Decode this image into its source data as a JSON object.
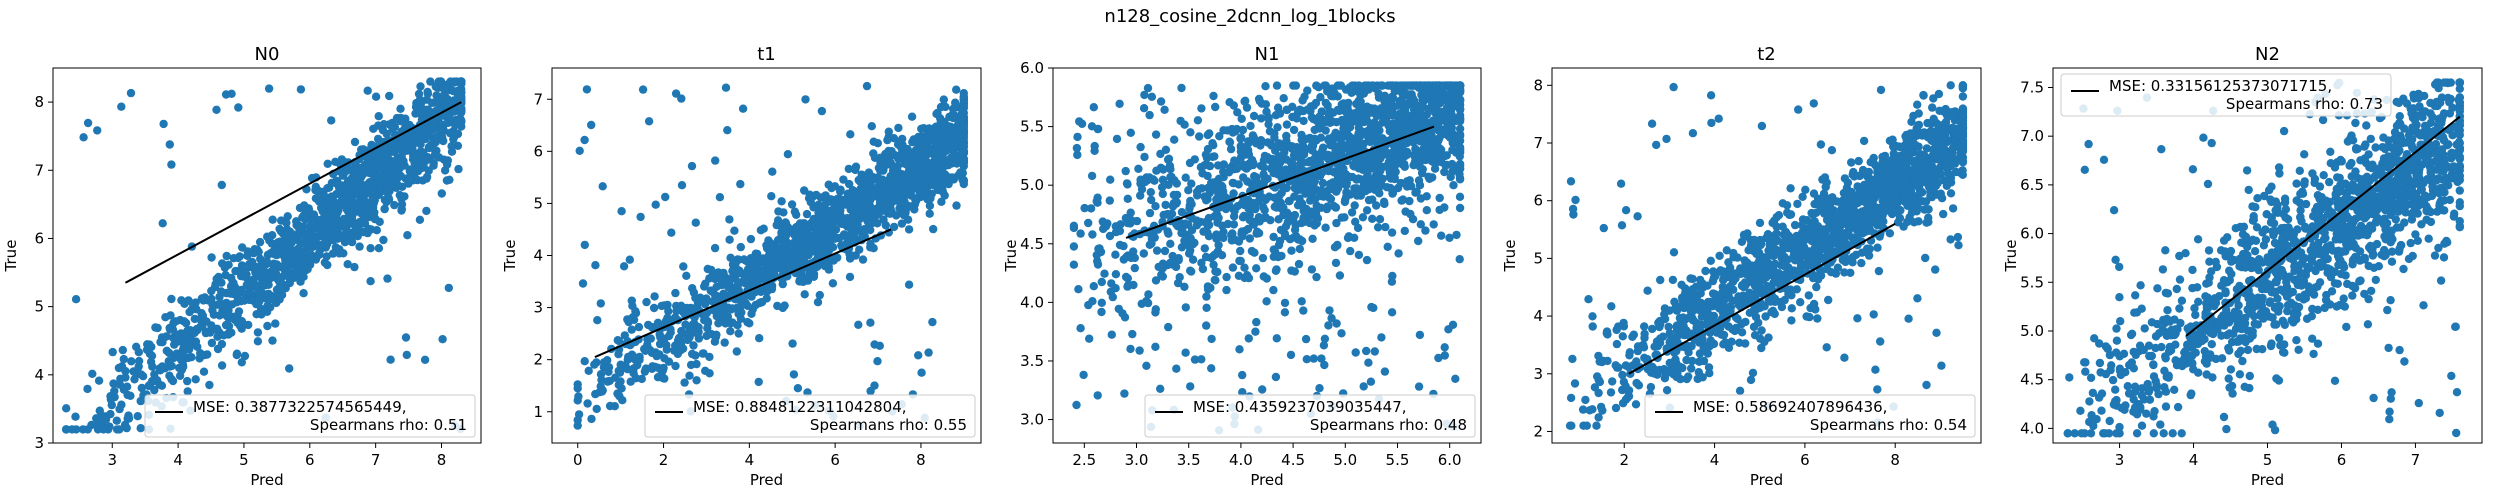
{
  "figure": {
    "suptitle": "n128_cosine_2dcnn_log_1blocks"
  },
  "colors": {
    "points": "#1f77b4",
    "fit_line": "#000000",
    "axes": "#000000",
    "legend_border": "#cccccc"
  },
  "chart_data": [
    {
      "type": "scatter",
      "title": "N0",
      "xlabel": "Pred",
      "ylabel": "True",
      "xlim": [
        2.1,
        8.6
      ],
      "ylim": [
        3.0,
        8.5
      ],
      "xticks": [
        3,
        4,
        5,
        6,
        7,
        8
      ],
      "yticks": [
        3,
        4,
        5,
        6,
        7,
        8
      ],
      "fit_line": [
        [
          3.2,
          5.35
        ],
        [
          8.3,
          8.0
        ]
      ],
      "legend": {
        "mse": "MSE: 0.3877322574565449,",
        "rho": "Spearmans rho: 0.51",
        "placement": "lower right"
      },
      "cloud": {
        "n": 1300,
        "seed": 11,
        "x_min": 2.3,
        "x_max": 8.3,
        "y_min": 3.2,
        "y_max": 8.3,
        "slope": 0.85,
        "intercept": 0.95,
        "noise": 0.35,
        "outliers": 0.06
      }
    },
    {
      "type": "scatter",
      "title": "t1",
      "xlabel": "Pred",
      "ylabel": "True",
      "xlim": [
        -0.6,
        9.4
      ],
      "ylim": [
        0.4,
        7.6
      ],
      "xticks": [
        0,
        2,
        4,
        6,
        8
      ],
      "yticks": [
        1,
        2,
        3,
        4,
        5,
        6,
        7
      ],
      "fit_line": [
        [
          0.4,
          2.05
        ],
        [
          7.3,
          4.5
        ]
      ],
      "legend": {
        "mse": "MSE: 0.8848122311042804,",
        "rho": "Spearmans rho: 0.55",
        "placement": "lower right"
      },
      "cloud": {
        "n": 1500,
        "seed": 23,
        "x_min": 0.0,
        "x_max": 9.0,
        "y_min": 0.7,
        "y_max": 7.3,
        "slope": 0.55,
        "intercept": 1.3,
        "noise": 0.4,
        "outliers": 0.07
      }
    },
    {
      "type": "scatter",
      "title": "N1",
      "xlabel": "Pred",
      "ylabel": "True",
      "xlim": [
        2.2,
        6.3
      ],
      "ylim": [
        2.8,
        6.0
      ],
      "xticks": [
        2.5,
        3.0,
        3.5,
        4.0,
        4.5,
        5.0,
        5.5,
        6.0
      ],
      "yticks": [
        3.0,
        3.5,
        4.0,
        4.5,
        5.0,
        5.5,
        6.0
      ],
      "fit_line": [
        [
          2.9,
          4.55
        ],
        [
          5.85,
          5.5
        ]
      ],
      "legend": {
        "mse": "MSE: 0.4359237039035447,",
        "rho": "Spearmans rho: 0.48",
        "placement": "lower right"
      },
      "cloud": {
        "n": 1700,
        "seed": 37,
        "x_min": 2.4,
        "x_max": 6.1,
        "y_min": 2.9,
        "y_max": 5.85,
        "slope": 0.35,
        "intercept": 3.55,
        "noise": 0.35,
        "outliers": 0.15
      }
    },
    {
      "type": "scatter",
      "title": "t2",
      "xlabel": "Pred",
      "ylabel": "True",
      "xlim": [
        0.4,
        9.9
      ],
      "ylim": [
        1.8,
        8.3
      ],
      "xticks": [
        2,
        4,
        6,
        8
      ],
      "yticks": [
        2,
        3,
        4,
        5,
        6,
        7,
        8
      ],
      "fit_line": [
        [
          2.1,
          3.0
        ],
        [
          8.0,
          5.6
        ]
      ],
      "legend": {
        "mse": "MSE: 0.58692407896436,",
        "rho": "Spearmans rho: 0.54",
        "placement": "lower right"
      },
      "cloud": {
        "n": 1500,
        "seed": 41,
        "x_min": 0.8,
        "x_max": 9.5,
        "y_min": 2.1,
        "y_max": 8.0,
        "slope": 0.55,
        "intercept": 1.9,
        "noise": 0.45,
        "outliers": 0.06
      }
    },
    {
      "type": "scatter",
      "title": "N2",
      "xlabel": "Pred",
      "ylabel": "True",
      "xlim": [
        2.1,
        7.9
      ],
      "ylim": [
        3.85,
        7.7
      ],
      "xticks": [
        3,
        4,
        5,
        6,
        7
      ],
      "yticks": [
        4.0,
        4.5,
        5.0,
        5.5,
        6.0,
        6.5,
        7.0,
        7.5
      ],
      "fit_line": [
        [
          3.9,
          4.95
        ],
        [
          7.6,
          7.2
        ]
      ],
      "legend": {
        "mse": "MSE: 0.33156125373071715,",
        "rho": "Spearmans rho: 0.73",
        "placement": "upper left"
      },
      "cloud": {
        "n": 1500,
        "seed": 53,
        "x_min": 2.3,
        "x_max": 7.6,
        "y_min": 3.95,
        "y_max": 7.55,
        "slope": 0.55,
        "intercept": 2.8,
        "noise": 0.4,
        "outliers": 0.08
      }
    }
  ]
}
